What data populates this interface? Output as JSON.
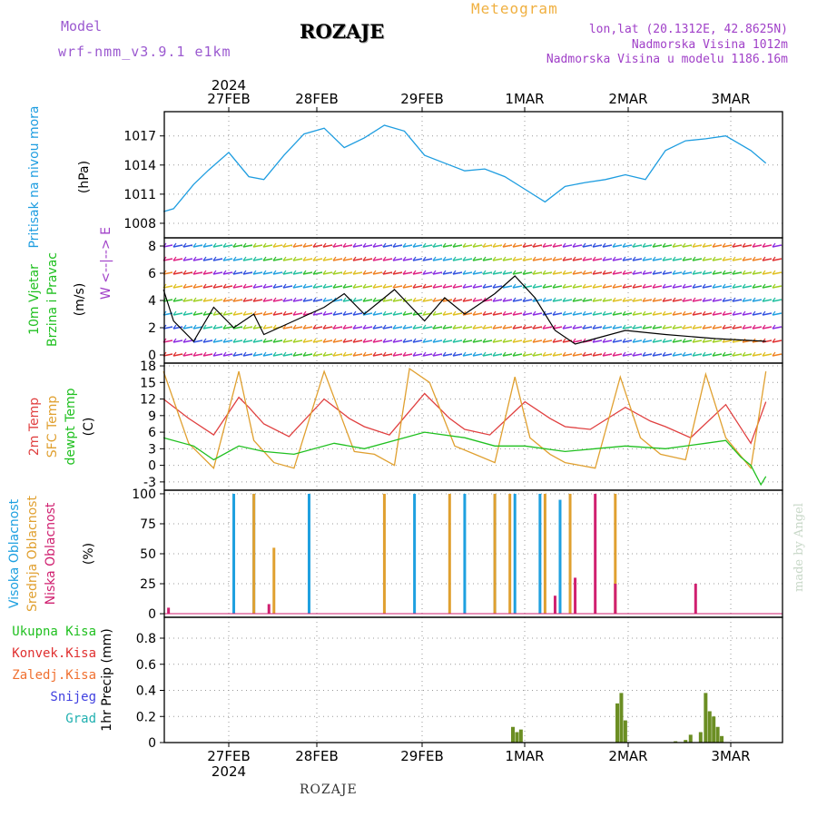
{
  "header": {
    "model_label": "Model",
    "model_name": "wrf-nmm_v3.9.1  e1km",
    "station": "ROZAJE",
    "meteogram_label": "Meteogram",
    "coords": "lon,lat (20.1312E, 42.8625N)",
    "elevation": "Nadmorska Visina 1012m",
    "model_elevation": "Nadmorska Visina u modelu 1186.16m"
  },
  "watermark": "made by Angel",
  "footer": {
    "station": "ROZAJE"
  },
  "time_axis": {
    "year": "2024",
    "days": [
      "27FEB",
      "28FEB",
      "29FEB",
      "1MAR",
      "2MAR",
      "3MAR"
    ]
  },
  "colors": {
    "pressure": "#1e9de0",
    "temp2m": "#e04040",
    "sfc_temp": "#e0a030",
    "dewpt": "#20c020",
    "high_cloud": "#1ea0e0",
    "mid_cloud": "#e0a030",
    "low_cloud": "#d02070",
    "total_precip": "#6b8e23",
    "wind_speed": "#000000",
    "wind_gust_marker": "#e03030"
  },
  "chart_data": [
    {
      "type": "line",
      "name": "pressure",
      "ylabel_lines": [
        "Pritisak na nivou mora"
      ],
      "unit": "(hPa)",
      "yticks": [
        1008,
        1011,
        1014,
        1017
      ],
      "ylim": [
        1006.5,
        1019.5
      ],
      "x_days": [
        0,
        0.1,
        0.3,
        0.45,
        0.65,
        0.85,
        1.0,
        1.2,
        1.4,
        1.6,
        1.8,
        2.0,
        2.2,
        2.4,
        2.6,
        2.8,
        3.0,
        3.2,
        3.4,
        3.6,
        3.8,
        4.0,
        4.2,
        4.4,
        4.6,
        4.8,
        5.0,
        5.2,
        5.4,
        5.6,
        5.85,
        6.0
      ],
      "values": [
        1009.2,
        1009.5,
        1012.0,
        1013.5,
        1015.3,
        1012.8,
        1012.5,
        1015.0,
        1017.2,
        1017.8,
        1015.8,
        1016.8,
        1018.1,
        1017.5,
        1015.0,
        1014.2,
        1013.4,
        1013.6,
        1012.8,
        1011.5,
        1010.2,
        1011.8,
        1012.2,
        1012.5,
        1013.0,
        1012.5,
        1015.5,
        1016.5,
        1016.7,
        1017.0,
        1015.5,
        1014.2
      ],
      "grid": true
    },
    {
      "type": "line",
      "name": "wind",
      "ylabel_lines": [
        "10m  Vjetar",
        "Brzina i Pravac"
      ],
      "unit": "(m/s)",
      "direction_legend": "W <--|--> E",
      "yticks": [
        0,
        2,
        4,
        6,
        8
      ],
      "ylim": [
        -0.6,
        8.6
      ],
      "series": [
        {
          "name": "speed",
          "x_days": [
            0,
            0.1,
            0.3,
            0.5,
            0.7,
            0.9,
            1.0,
            1.3,
            1.6,
            1.8,
            2.0,
            2.3,
            2.6,
            2.8,
            3.0,
            3.3,
            3.5,
            3.7,
            3.9,
            4.1,
            4.3,
            4.6,
            5.0,
            5.5,
            6.0
          ],
          "values": [
            4.8,
            2.5,
            1.0,
            3.5,
            2.0,
            3.0,
            1.5,
            2.5,
            3.5,
            4.5,
            3.0,
            4.8,
            2.5,
            4.2,
            3.0,
            4.5,
            5.8,
            4.2,
            1.8,
            0.8,
            1.2,
            1.8,
            1.5,
            1.2,
            1.0
          ]
        }
      ],
      "grid": true
    },
    {
      "type": "line",
      "name": "temperature",
      "ylabel_lines": [
        "2m Temp",
        "SFC Temp",
        "dewpt Temp"
      ],
      "unit": "(C)",
      "yticks": [
        -3,
        0,
        3,
        6,
        9,
        12,
        15,
        18
      ],
      "ylim": [
        -4.5,
        18.5
      ],
      "series": [
        {
          "name": "2m Temp",
          "x_days": [
            0,
            0.25,
            0.5,
            0.75,
            0.85,
            1.0,
            1.25,
            1.6,
            1.85,
            2.0,
            2.25,
            2.6,
            2.85,
            3.0,
            3.25,
            3.6,
            3.85,
            4.0,
            4.25,
            4.6,
            4.85,
            5.0,
            5.25,
            5.6,
            5.85,
            6.0
          ],
          "values": [
            12.0,
            8.5,
            5.5,
            12.3,
            10.5,
            7.5,
            5.2,
            12.0,
            8.5,
            7.0,
            5.5,
            13.0,
            8.5,
            6.5,
            5.5,
            11.5,
            8.5,
            7.0,
            6.5,
            10.5,
            8.0,
            7.0,
            5.0,
            11.0,
            4.0,
            11.5
          ]
        },
        {
          "name": "SFC Temp",
          "x_days": [
            0,
            0.25,
            0.5,
            0.75,
            0.9,
            1.1,
            1.3,
            1.6,
            1.9,
            2.1,
            2.3,
            2.45,
            2.65,
            2.9,
            3.1,
            3.3,
            3.5,
            3.65,
            3.85,
            4.0,
            4.3,
            4.55,
            4.75,
            4.95,
            5.2,
            5.4,
            5.6,
            5.85,
            6.0
          ],
          "values": [
            17.0,
            4.0,
            -0.5,
            17.0,
            4.5,
            0.5,
            -0.5,
            17.0,
            2.5,
            2.0,
            0.0,
            17.5,
            15.0,
            3.5,
            2.0,
            0.5,
            16.0,
            5.0,
            2.0,
            0.5,
            -0.5,
            16.0,
            5.0,
            2.0,
            1.0,
            16.5,
            5.0,
            -0.5,
            17.0
          ]
        },
        {
          "name": "dewpt Temp",
          "x_days": [
            0,
            0.3,
            0.5,
            0.75,
            1.0,
            1.3,
            1.7,
            2.0,
            2.4,
            2.6,
            3.0,
            3.3,
            3.6,
            4.0,
            4.3,
            4.6,
            5.0,
            5.4,
            5.6,
            5.75,
            5.85,
            5.95,
            6.0
          ],
          "values": [
            5.0,
            3.5,
            1.0,
            3.5,
            2.5,
            2.0,
            4.0,
            3.0,
            5.0,
            6.0,
            5.0,
            3.5,
            3.5,
            2.5,
            3.0,
            3.5,
            3.0,
            4.0,
            4.5,
            1.5,
            0.0,
            -3.5,
            -2.0
          ]
        }
      ],
      "grid": true
    },
    {
      "type": "bar",
      "name": "cloud",
      "ylabel_lines": [
        "Visoka  Oblacnost",
        "Srednja  Oblacnost",
        "Niska  Oblacnost"
      ],
      "unit": "(%)",
      "yticks": [
        0,
        25,
        50,
        75,
        100
      ],
      "ylim": [
        -3,
        103
      ],
      "series": [
        {
          "name": "Visoka Oblacnost",
          "x_days": [
            0.7,
            0.9,
            1.45,
            2.5,
            3.0,
            3.3,
            3.5,
            3.75,
            3.95
          ],
          "values": [
            100,
            100,
            100,
            100,
            100,
            100,
            100,
            100,
            95
          ]
        },
        {
          "name": "Srednja Oblacnost",
          "x_days": [
            0.9,
            1.1,
            2.2,
            2.85,
            3.3,
            3.45,
            3.8,
            4.05,
            4.5
          ],
          "values": [
            100,
            55,
            100,
            100,
            100,
            100,
            100,
            100,
            100
          ]
        },
        {
          "name": "Niska Oblacnost",
          "x_days": [
            0.05,
            1.05,
            3.9,
            4.1,
            4.3,
            4.5,
            5.3
          ],
          "values": [
            5,
            8,
            15,
            30,
            100,
            25,
            25
          ]
        }
      ],
      "grid": true
    },
    {
      "type": "bar",
      "name": "precipitation",
      "legend": [
        "Ukupna  Kisa",
        "Konvek.Kisa",
        "Zaledj.Kisa",
        "Snijeg",
        "Grad"
      ],
      "ylabel": "1hr Precip (mm)",
      "yticks": [
        0,
        0.2,
        0.4,
        0.6,
        0.8
      ],
      "ylim": [
        0,
        0.96
      ],
      "series": [
        {
          "name": "Ukupna Kisa",
          "x_days": [
            3.48,
            3.52,
            3.56,
            4.52,
            4.56,
            4.6,
            5.1,
            5.2,
            5.25,
            5.35,
            5.4,
            5.44,
            5.48,
            5.52,
            5.56
          ],
          "values": [
            0.12,
            0.08,
            0.1,
            0.3,
            0.38,
            0.17,
            0.01,
            0.02,
            0.06,
            0.08,
            0.38,
            0.24,
            0.2,
            0.12,
            0.05
          ]
        }
      ],
      "grid": true
    }
  ]
}
